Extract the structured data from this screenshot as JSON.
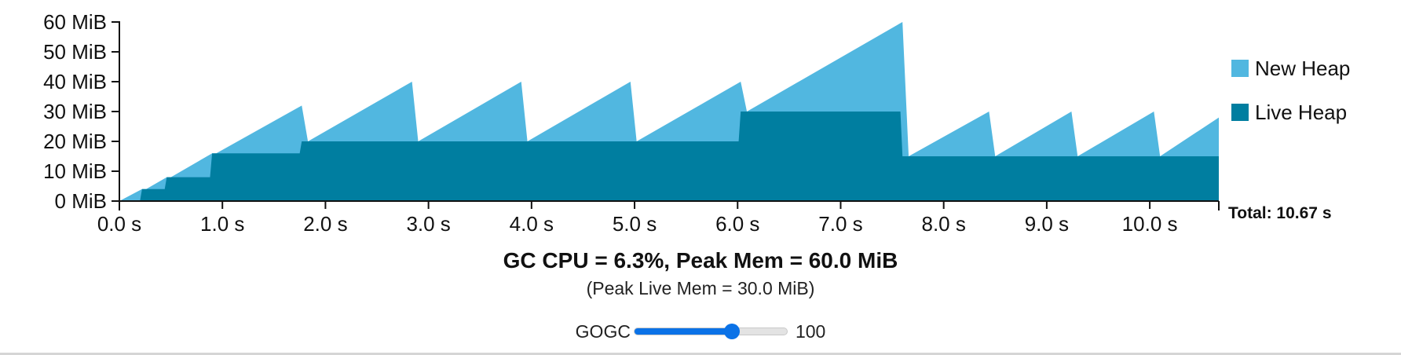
{
  "chart_data": {
    "type": "area",
    "y_unit": "MiB",
    "x_unit": "s",
    "ylim": [
      0,
      60
    ],
    "xlim": [
      0,
      10.67
    ],
    "y_ticks": [
      "0 MiB",
      "10 MiB",
      "20 MiB",
      "30 MiB",
      "40 MiB",
      "50 MiB",
      "60 MiB"
    ],
    "y_tick_values": [
      0,
      10,
      20,
      30,
      40,
      50,
      60
    ],
    "x_ticks": [
      "0.0 s",
      "1.0 s",
      "2.0 s",
      "3.0 s",
      "4.0 s",
      "5.0 s",
      "6.0 s",
      "7.0 s",
      "8.0 s",
      "9.0 s",
      "10.0 s"
    ],
    "x_tick_values": [
      0,
      1,
      2,
      3,
      4,
      5,
      6,
      7,
      8,
      9,
      10
    ],
    "grid": false,
    "legend_position": "right",
    "series": [
      {
        "name": "New Heap",
        "color": "#51b7e0",
        "x": [
          0,
          0.22,
          0.26,
          0.46,
          0.5,
          0.9,
          0.94,
          1.77,
          1.83,
          2.84,
          2.9,
          3.9,
          3.96,
          4.96,
          5.02,
          6.03,
          6.09,
          7.6,
          7.66,
          8.44,
          8.5,
          9.24,
          9.3,
          10.04,
          10.1,
          10.67
        ],
        "values": [
          0,
          4,
          4,
          8,
          8,
          16,
          16,
          32,
          20,
          40,
          20,
          40,
          20,
          40,
          20,
          40,
          30,
          60,
          15,
          30,
          15,
          30,
          15,
          30,
          15,
          28
        ]
      },
      {
        "name": "Live Heap",
        "color": "#007ea0",
        "x": [
          0,
          0.2,
          0.22,
          0.44,
          0.46,
          0.88,
          0.9,
          1.75,
          1.77,
          6.01,
          6.03,
          7.58,
          7.6,
          10.67
        ],
        "values": [
          0,
          0,
          4,
          4,
          8,
          8,
          16,
          16,
          20,
          20,
          30,
          30,
          15,
          15
        ]
      }
    ],
    "total_label": "Total: 10.67 s"
  },
  "stats": {
    "title": "GC CPU = 6.3%, Peak Mem = 60.0 MiB",
    "subtitle": "(Peak Live Mem = 30.0 MiB)"
  },
  "control": {
    "label": "GOGC",
    "value": "100",
    "slider_fraction": 0.64,
    "accent_color": "#0b72e7"
  }
}
